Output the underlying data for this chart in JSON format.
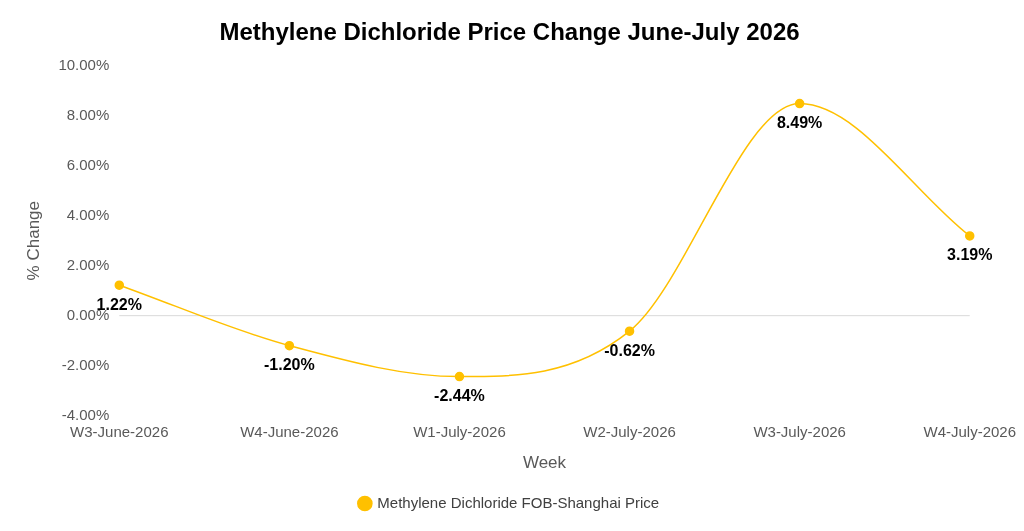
{
  "chart_data": {
    "type": "line",
    "title": "Methylene Dichloride Price Change June-July 2026",
    "xlabel": "Week",
    "ylabel": "% Change",
    "categories": [
      "W3-June-2026",
      "W4-June-2026",
      "W1-July-2026",
      "W2-July-2026",
      "W3-July-2026",
      "W4-July-2026"
    ],
    "series": [
      {
        "name": "Methylene Dichloride FOB-Shanghai Price",
        "color": "#ffc000",
        "values": [
          1.22,
          -1.2,
          -2.44,
          -0.62,
          8.49,
          3.19
        ],
        "value_labels": [
          "1.22%",
          "-1.20%",
          "-2.44%",
          "-0.62%",
          "8.49%",
          "3.19%"
        ]
      }
    ],
    "ylim": [
      -4,
      10
    ],
    "yticks": [
      {
        "value": -4,
        "label": "-4.00%"
      },
      {
        "value": -2,
        "label": "-2.00%"
      },
      {
        "value": 0,
        "label": "0.00%"
      },
      {
        "value": 2,
        "label": "2.00%"
      },
      {
        "value": 4,
        "label": "4.00%"
      },
      {
        "value": 6,
        "label": "6.00%"
      },
      {
        "value": 8,
        "label": "8.00%"
      },
      {
        "value": 10,
        "label": "10.00%"
      }
    ],
    "ref_lines": [
      {
        "axis": "y",
        "value": 0,
        "color": "#d9d9d9"
      }
    ],
    "grid": false,
    "legend": "bottom",
    "marker": "circle",
    "line_style": "solid"
  }
}
